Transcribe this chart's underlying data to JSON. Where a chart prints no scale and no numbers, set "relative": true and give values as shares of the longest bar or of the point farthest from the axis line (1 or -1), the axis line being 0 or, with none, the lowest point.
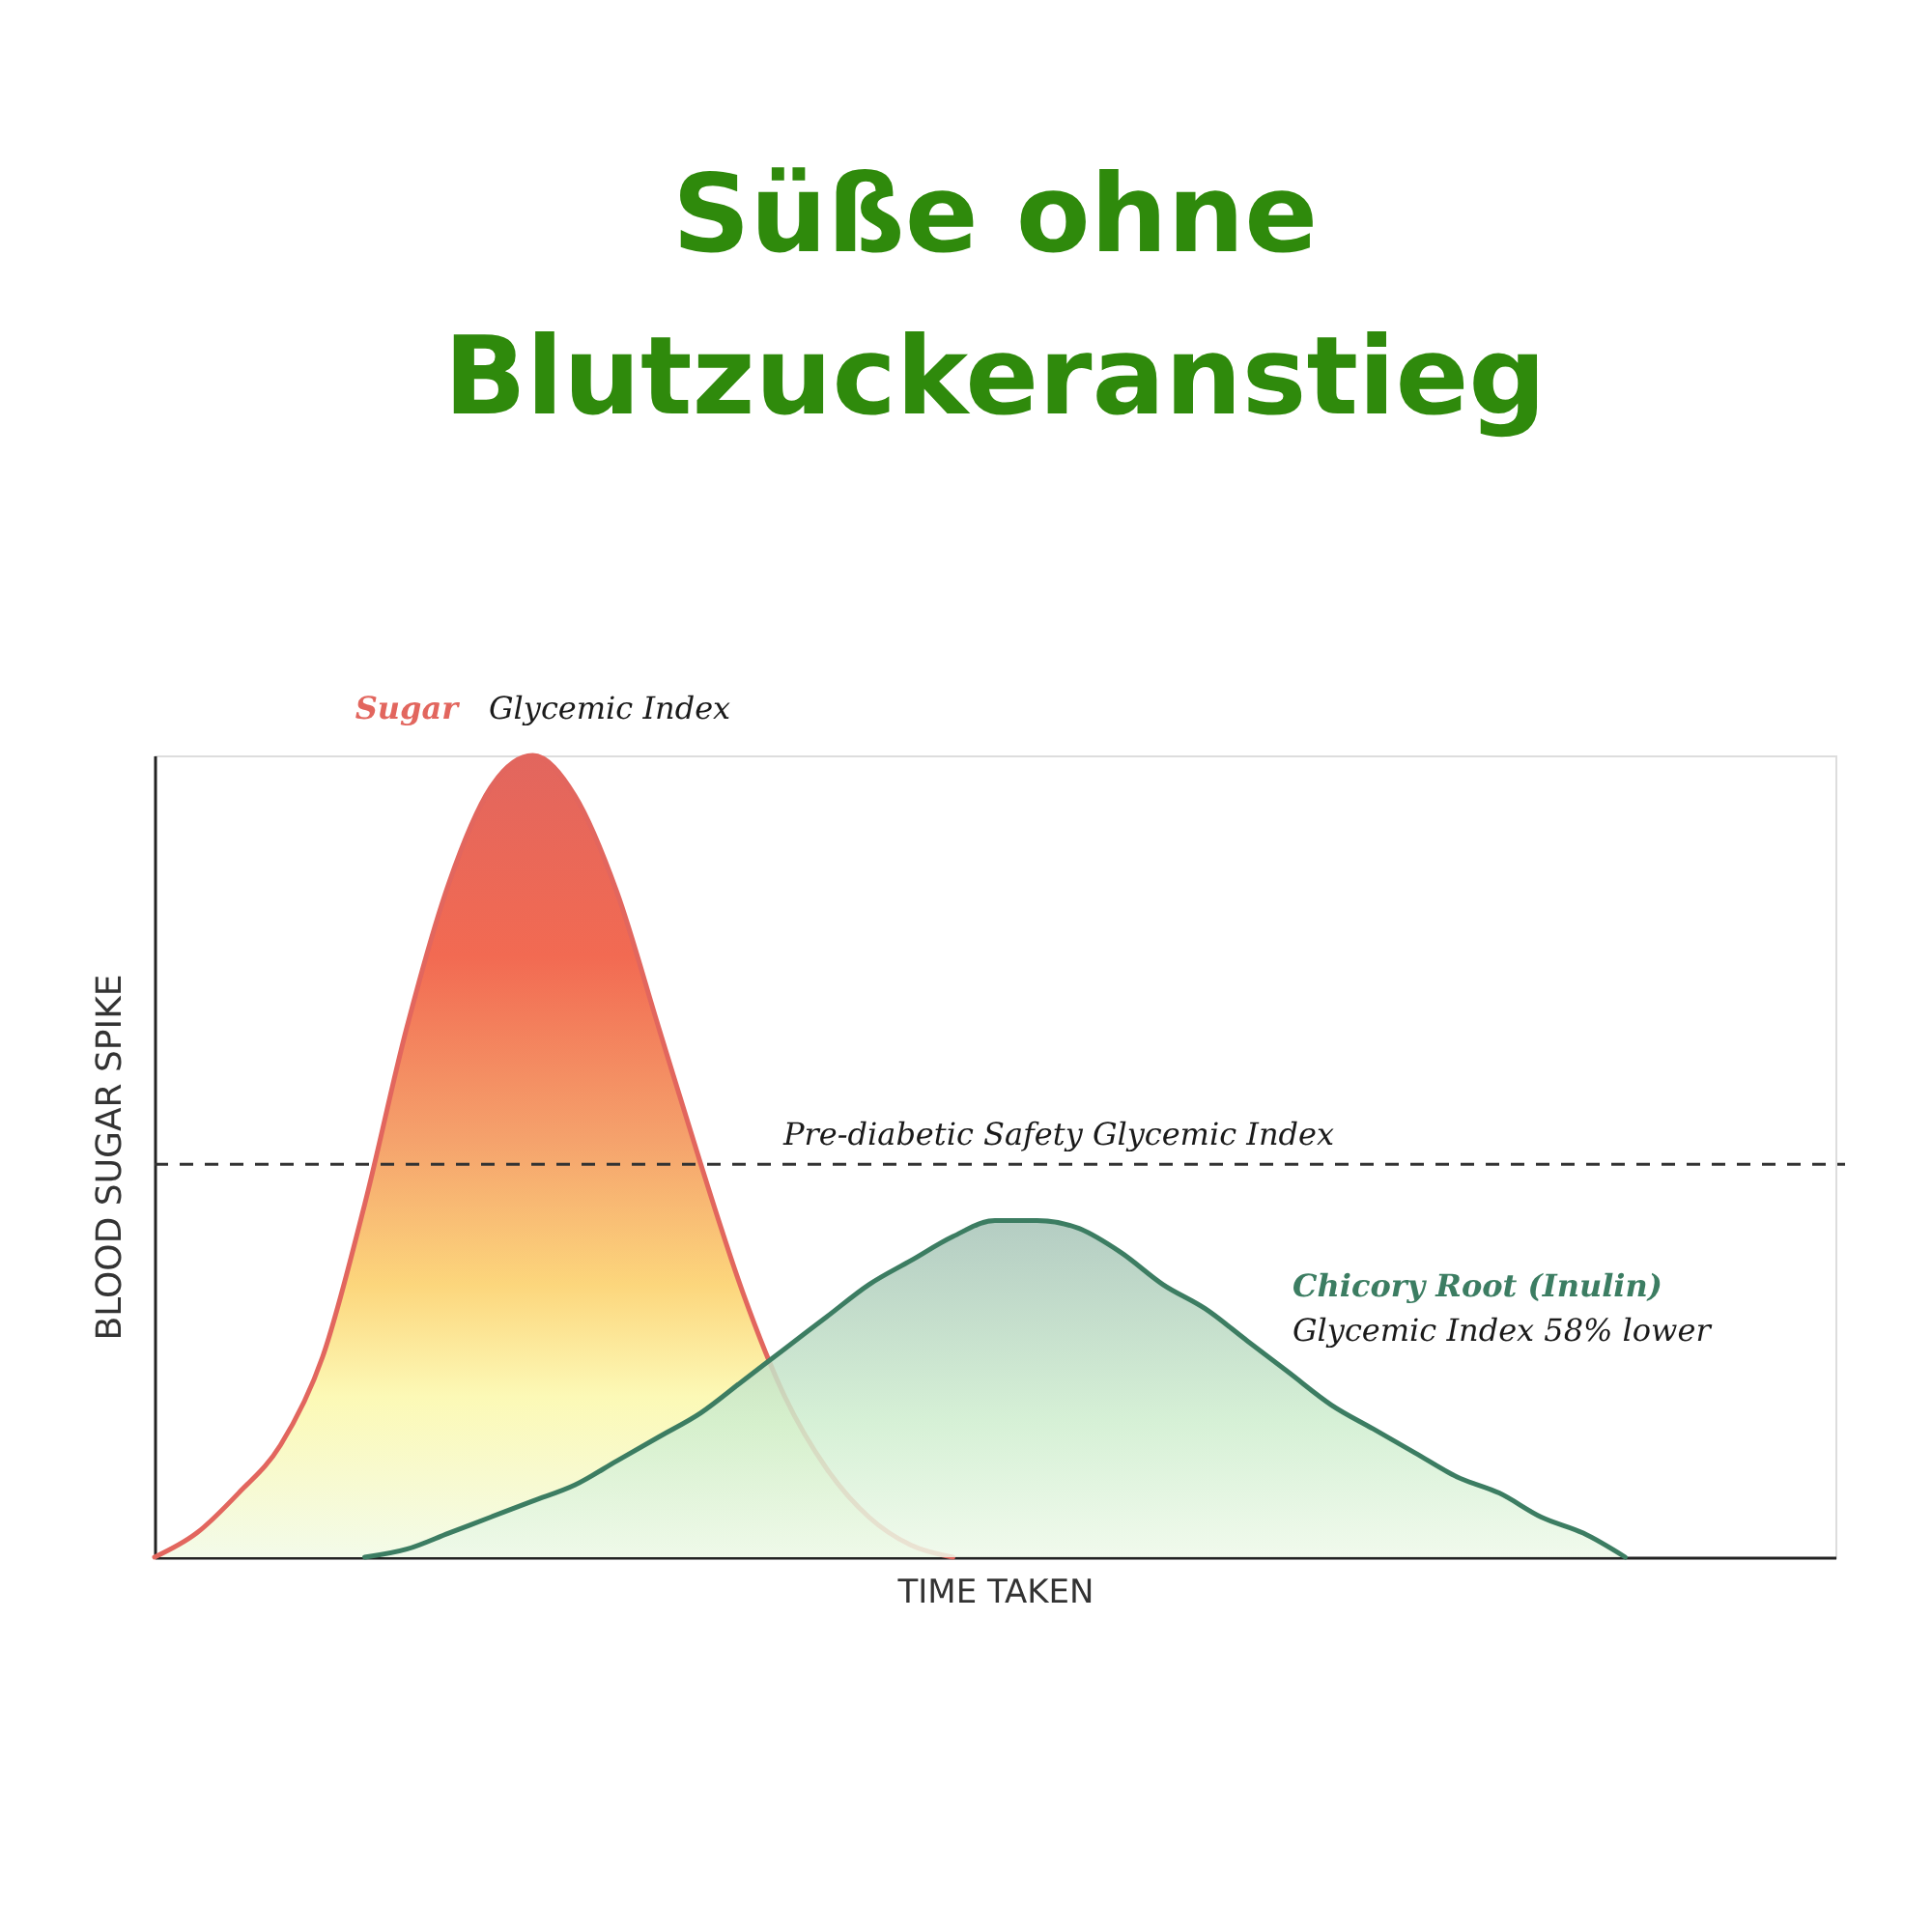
{
  "chart_data": {
    "type": "area",
    "title": "Süße ohne Blutzuckeranstieg",
    "xlabel": "TIME TAKEN",
    "ylabel": "BLOOD SUGAR SPIKE",
    "relative": true,
    "categories": [
      null,
      null,
      null,
      null,
      null,
      null,
      null,
      null,
      null,
      null,
      null,
      null,
      null,
      null,
      null,
      null,
      null,
      null,
      null,
      null,
      null,
      null,
      null,
      null,
      null,
      null,
      null,
      null,
      null,
      null,
      null,
      null,
      null,
      null,
      null,
      null,
      null,
      null,
      null,
      null,
      null
    ],
    "series": [
      {
        "name": "Sugar",
        "color": "#e2665e",
        "values": [
          0,
          0.03,
          0.08,
          0.14,
          0.25,
          0.44,
          0.66,
          0.84,
          0.96,
          1,
          0.95,
          0.83,
          0.66,
          0.49,
          0.33,
          0.2,
          0.11,
          0.05,
          0.015,
          0,
          null,
          null,
          null,
          null,
          null,
          null,
          null,
          null,
          null,
          null,
          null,
          null,
          null,
          null,
          null,
          null,
          null,
          null,
          null,
          null,
          null
        ]
      },
      {
        "name": "Chicory Root (Inulin)",
        "color": "#3c7d62",
        "values": [
          null,
          null,
          null,
          null,
          null,
          0,
          0.01,
          0.03,
          0.05,
          0.07,
          0.09,
          0.12,
          0.15,
          0.18,
          0.22,
          0.26,
          0.3,
          0.34,
          0.37,
          0.4,
          0.42,
          0.42,
          0.41,
          0.38,
          0.34,
          0.31,
          0.27,
          0.23,
          0.19,
          0.16,
          0.13,
          0.1,
          0.08,
          0.05,
          0.03,
          0,
          null,
          null,
          null,
          null,
          null
        ]
      }
    ],
    "ref_lines": [
      {
        "axis": "y",
        "value": 0.49,
        "label": "Pre-diabetic Safety Glycemic Index",
        "color": "#333333",
        "line_style": "dashed"
      }
    ],
    "annotations": [
      "Glycemic Index",
      "Glycemic Index 58% lower"
    ]
  }
}
